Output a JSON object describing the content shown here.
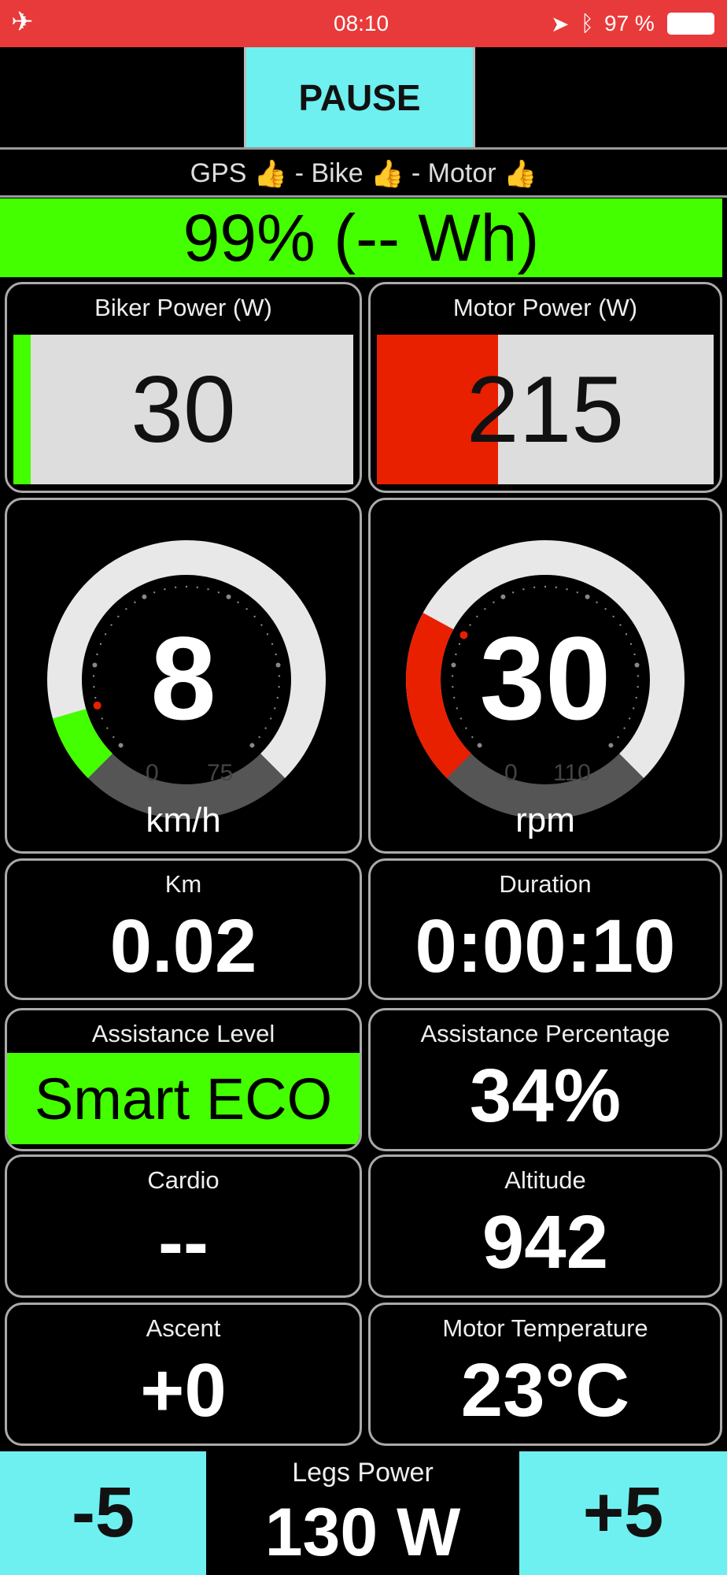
{
  "status_bar": {
    "time": "08:10",
    "battery": "97 %",
    "icons": [
      "airplane-icon",
      "location-icon",
      "bluetooth-icon",
      "battery-icon"
    ],
    "color": "#e83a3a"
  },
  "pause_label": "PAUSE",
  "connection": {
    "gps": "GPS",
    "bike": "Bike",
    "motor": "Motor",
    "separator": "-",
    "ok_icon": "👍"
  },
  "battery": {
    "text": "99% (-- Wh)",
    "percent": 99,
    "color": "#44ff00"
  },
  "biker_power": {
    "label": "Biker Power (W)",
    "value": "30",
    "fill_fraction": 0.05,
    "color": "#44ff00"
  },
  "motor_power": {
    "label": "Motor Power (W)",
    "value": "215",
    "fill_fraction": 0.36,
    "color": "#e82000"
  },
  "speed": {
    "value": "8",
    "min": "0",
    "max": "75",
    "unit": "km/h",
    "current": 8,
    "range_max": 75,
    "color": "#44ff00"
  },
  "cadence": {
    "value": "30",
    "min": "0",
    "max": "110",
    "unit": "rpm",
    "current": 30,
    "range_max": 110,
    "color": "#e82000"
  },
  "tiles": [
    {
      "label": "Km",
      "value": "0.02"
    },
    {
      "label": "Duration",
      "value": "0:00:10"
    },
    {
      "label": "Assistance Level",
      "value": "Smart ECO"
    },
    {
      "label": "Assistance Percentage",
      "value": "34%"
    },
    {
      "label": "Cardio",
      "value": "--"
    },
    {
      "label": "Altitude",
      "value": "942"
    },
    {
      "label": "Ascent",
      "value": "+0"
    },
    {
      "label": "Motor Temperature",
      "value": "23°C"
    }
  ],
  "legs_power": {
    "label": "Legs Power",
    "value": "130 W",
    "minus": "-5",
    "plus": "+5"
  }
}
